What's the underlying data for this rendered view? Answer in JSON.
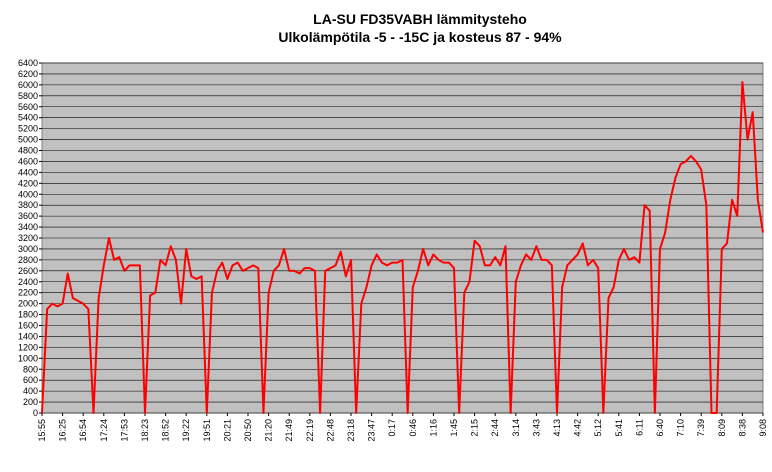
{
  "chart_data": {
    "type": "line",
    "title": "LA-SU FD35VABH lämmitysteho",
    "subtitle": "Ulkolämpötila  -5 - -15C ja kosteus 87 - 94%",
    "categories": [
      "15:55",
      null,
      null,
      null,
      "16:25",
      null,
      null,
      null,
      "16:54",
      null,
      null,
      null,
      "17:24",
      null,
      null,
      null,
      "17:53",
      null,
      null,
      null,
      "18:23",
      null,
      null,
      null,
      "18:52",
      null,
      null,
      null,
      "19:22",
      null,
      null,
      null,
      "19:51",
      null,
      null,
      null,
      "20:21",
      null,
      null,
      null,
      "20:50",
      null,
      null,
      null,
      "21:20",
      null,
      null,
      null,
      "21:49",
      null,
      null,
      null,
      "22:19",
      null,
      null,
      null,
      "22:48",
      null,
      null,
      null,
      "23:18",
      null,
      null,
      null,
      "23:47",
      null,
      null,
      null,
      "0:17",
      null,
      null,
      null,
      "0:46",
      null,
      null,
      null,
      "1:16",
      null,
      null,
      null,
      "1:45",
      null,
      null,
      null,
      "2:15",
      null,
      null,
      null,
      "2:44",
      null,
      null,
      null,
      "3:14",
      null,
      null,
      null,
      "3:43",
      null,
      null,
      null,
      "4:13",
      null,
      null,
      null,
      "4:42",
      null,
      null,
      null,
      "5:12",
      null,
      null,
      null,
      "5:41",
      null,
      null,
      null,
      "6:11",
      null,
      null,
      null,
      "6:40",
      null,
      null,
      null,
      "7:10",
      null,
      null,
      null,
      "7:39",
      null,
      null,
      null,
      "8:09",
      null,
      null,
      null,
      "8:38",
      null,
      null,
      null,
      "9:08"
    ],
    "values": [
      0,
      1900,
      2000,
      1950,
      2000,
      2550,
      2100,
      2050,
      2000,
      1900,
      0,
      2100,
      2700,
      3200,
      2800,
      2850,
      2600,
      2700,
      2700,
      2700,
      0,
      2150,
      2200,
      2800,
      2700,
      3050,
      2800,
      2000,
      3000,
      2500,
      2450,
      2500,
      0,
      2200,
      2600,
      2750,
      2450,
      2700,
      2750,
      2600,
      2650,
      2700,
      2650,
      0,
      2200,
      2600,
      2700,
      3000,
      2600,
      2600,
      2550,
      2650,
      2650,
      2600,
      0,
      2600,
      2650,
      2700,
      2950,
      2500,
      2800,
      0,
      2000,
      2300,
      2700,
      2900,
      2750,
      2700,
      2750,
      2750,
      2800,
      0,
      2300,
      2600,
      3000,
      2700,
      2900,
      2800,
      2750,
      2750,
      2650,
      0,
      2200,
      2400,
      3150,
      3050,
      2700,
      2700,
      2850,
      2700,
      3050,
      0,
      2400,
      2700,
      2900,
      2800,
      3050,
      2800,
      2800,
      2700,
      0,
      2300,
      2700,
      2800,
      2900,
      3100,
      2700,
      2800,
      2650,
      0,
      2100,
      2300,
      2800,
      3000,
      2800,
      2850,
      2750,
      3800,
      3700,
      0,
      3000,
      3300,
      3900,
      4300,
      4550,
      4600,
      4700,
      4600,
      4450,
      3800,
      0,
      0,
      3000,
      3100,
      3900,
      3600,
      6050,
      5000,
      5500,
      3900,
      3300
    ],
    "color": "#ff0000",
    "ylim": [
      0,
      6400
    ],
    "yticks": [
      0,
      200,
      400,
      600,
      800,
      1000,
      1200,
      1400,
      1600,
      1800,
      2000,
      2200,
      2400,
      2600,
      2800,
      3000,
      3200,
      3400,
      3600,
      3800,
      4000,
      4200,
      4400,
      4600,
      4800,
      5000,
      5200,
      5400,
      5600,
      5800,
      6000,
      6200,
      6400
    ],
    "grid": true
  }
}
